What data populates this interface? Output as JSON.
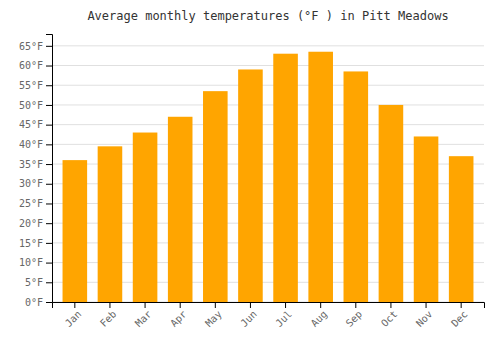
{
  "chart_data": {
    "type": "bar",
    "title": "Average monthly temperatures (°F ) in Pitt Meadows",
    "categories": [
      "Jan",
      "Feb",
      "Mar",
      "Apr",
      "May",
      "Jun",
      "Jul",
      "Aug",
      "Sep",
      "Oct",
      "Nov",
      "Dec"
    ],
    "values": [
      36,
      39.5,
      43,
      47,
      53.5,
      59,
      63,
      63.5,
      58.5,
      50,
      42,
      37
    ],
    "color": "#FFA500",
    "ylim": [
      0,
      68
    ],
    "yticks": [
      {
        "value": 0,
        "label": "0°F"
      },
      {
        "value": 5,
        "label": "5°F"
      },
      {
        "value": 10,
        "label": "10°F"
      },
      {
        "value": 15,
        "label": "15°F"
      },
      {
        "value": 20,
        "label": "20°F"
      },
      {
        "value": 25,
        "label": "25°F"
      },
      {
        "value": 30,
        "label": "30°F"
      },
      {
        "value": 35,
        "label": "35°F"
      },
      {
        "value": 40,
        "label": "40°F"
      },
      {
        "value": 45,
        "label": "45°F"
      },
      {
        "value": 50,
        "label": "50°F"
      },
      {
        "value": 55,
        "label": "55°F"
      },
      {
        "value": 60,
        "label": "60°F"
      },
      {
        "value": 65,
        "label": "65°F"
      }
    ],
    "grid": true
  }
}
